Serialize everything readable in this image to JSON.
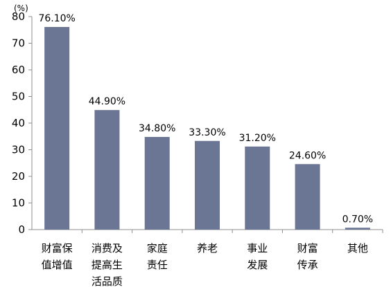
{
  "chart_data": {
    "type": "bar",
    "title": "",
    "xlabel": "",
    "ylabel": "",
    "unit_label": "(%)",
    "ylim": [
      0,
      80
    ],
    "yticks": [
      "0",
      "10",
      "20",
      "30",
      "40",
      "50",
      "60",
      "70",
      "80"
    ],
    "grid": false,
    "bar_color": "#6b7594",
    "categories": [
      [
        "财富保",
        "值增值"
      ],
      [
        "消费及",
        "提高生",
        "活品质"
      ],
      [
        "家庭",
        "责任"
      ],
      [
        "养老"
      ],
      [
        "事业",
        "发展"
      ],
      [
        "财富",
        "传承"
      ],
      [
        "其他"
      ]
    ],
    "values": [
      76.1,
      44.9,
      34.8,
      33.3,
      31.2,
      24.6,
      0.7
    ],
    "data_labels": [
      "76.10%",
      "44.90%",
      "34.80%",
      "33.30%",
      "31.20%",
      "24.60%",
      "0.70%"
    ]
  }
}
